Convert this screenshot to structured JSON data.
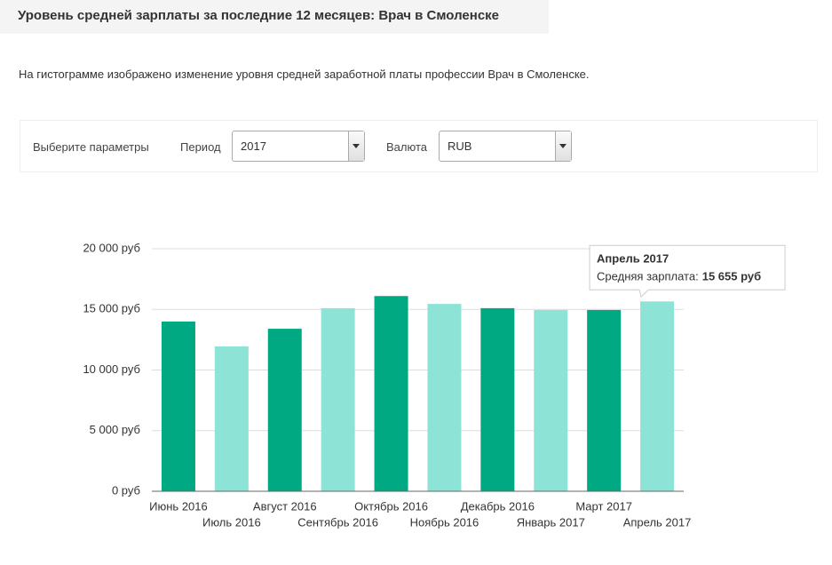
{
  "header": {
    "title": "Уровень средней зарплаты за последние 12 месяцев: Врач в Смоленске"
  },
  "description": "На гистограмме изображено изменение уровня средней заработной платы профессии Врач в Смоленске.",
  "controls": {
    "label": "Выберите параметры",
    "period_label": "Период",
    "period_value": "2017",
    "currency_label": "Валюта",
    "currency_value": "RUB"
  },
  "chart_data": {
    "type": "bar",
    "categories": [
      "Июнь 2016",
      "Июль 2016",
      "Август 2016",
      "Сентябрь 2016",
      "Октябрь 2016",
      "Ноябрь 2016",
      "Декабрь 2016",
      "Январь 2017",
      "Март 2017",
      "Апрель 2017"
    ],
    "values": [
      14000,
      11950,
      13400,
      15100,
      16100,
      15450,
      15100,
      14950,
      14950,
      15655
    ],
    "value_labels": [
      null,
      null,
      null,
      null,
      null,
      null,
      null,
      null,
      null,
      "15 655 руб"
    ],
    "colors": [
      "#00a982",
      "#8ee3d7",
      "#00a982",
      "#8ee3d7",
      "#00a982",
      "#8ee3d7",
      "#00a982",
      "#8ee3d7",
      "#00a982",
      "#8ee3d7"
    ],
    "tooltip_label": "Средняя зарплата:",
    "ylim": [
      0,
      20000
    ],
    "yticks": [
      {
        "value": 0,
        "label": "0 руб"
      },
      {
        "value": 5000,
        "label": "5 000 руб"
      },
      {
        "value": 10000,
        "label": "10 000 руб"
      },
      {
        "value": 15000,
        "label": "15 000 руб"
      },
      {
        "value": 20000,
        "label": "20 000 руб"
      }
    ],
    "grid": true
  }
}
